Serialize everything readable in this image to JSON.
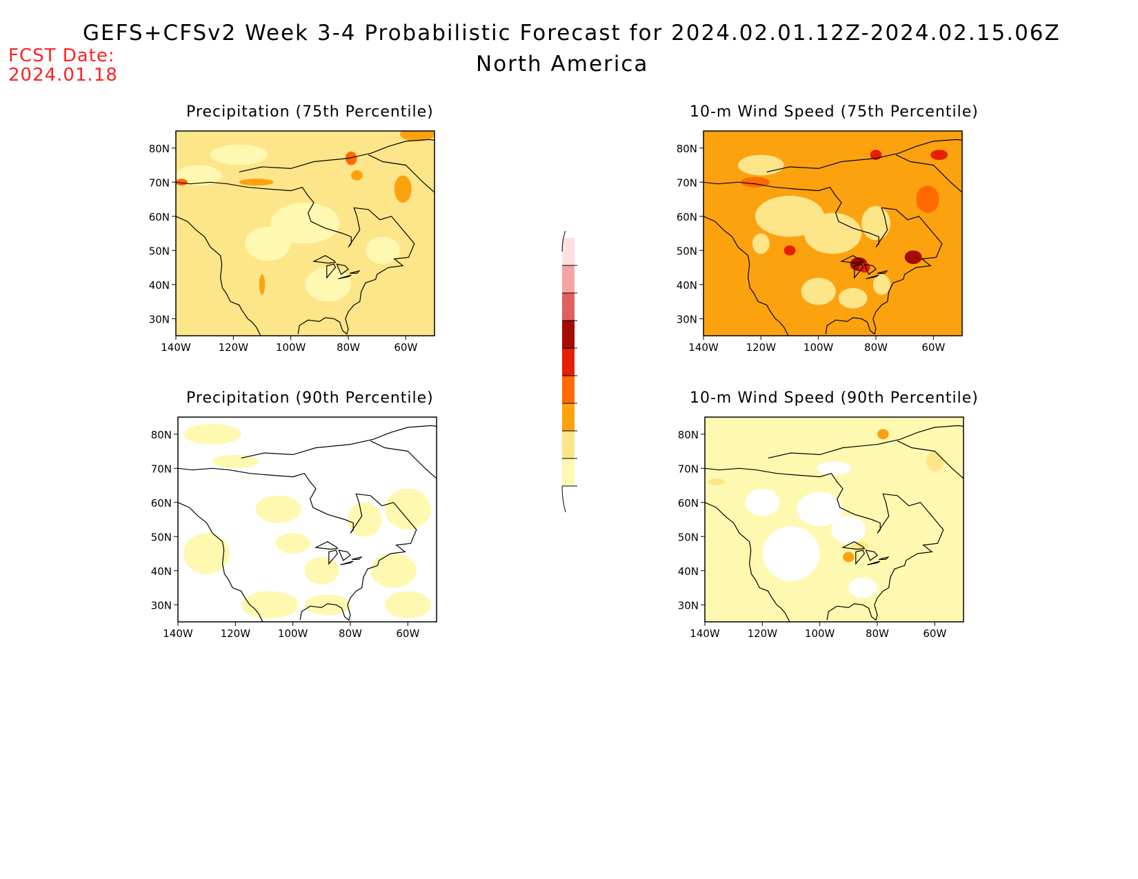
{
  "header": {
    "title_line1": "GEFS+CFSv2 Week 3-4 Probabilistic Forecast for 2024.02.01.12Z-2024.02.15.06Z",
    "title_line2": "North America",
    "fcst_label": "FCST Date:",
    "fcst_date": "2024.01.18"
  },
  "axes": {
    "lat_ticks": [
      "80N",
      "70N",
      "60N",
      "50N",
      "40N",
      "30N"
    ],
    "lon_ticks": [
      "140W",
      "120W",
      "100W",
      "80W",
      "60W"
    ]
  },
  "colorbar": {
    "levels": [
      "10",
      "20",
      "30",
      "40",
      "50",
      "60",
      "70",
      "80",
      "90"
    ],
    "colors": [
      "#fff8b0",
      "#fde58a",
      "#fca20e",
      "#ff6a00",
      "#e52000",
      "#a50c00",
      "#e06060",
      "#f5a3a3",
      "#fde0e0"
    ]
  },
  "panels": [
    {
      "id": "precip75",
      "title": "Precipitation (75th Percentile)",
      "base_color": "#fde58a"
    },
    {
      "id": "wind75",
      "title": "10-m Wind Speed (75th Percentile)",
      "base_color": "#fca20e"
    },
    {
      "id": "precip90",
      "title": "Precipitation (90th Percentile)",
      "base_color": "#ffffff"
    },
    {
      "id": "wind90",
      "title": "10-m Wind Speed (90th Percentile)",
      "base_color": "#fff8b0"
    }
  ]
}
